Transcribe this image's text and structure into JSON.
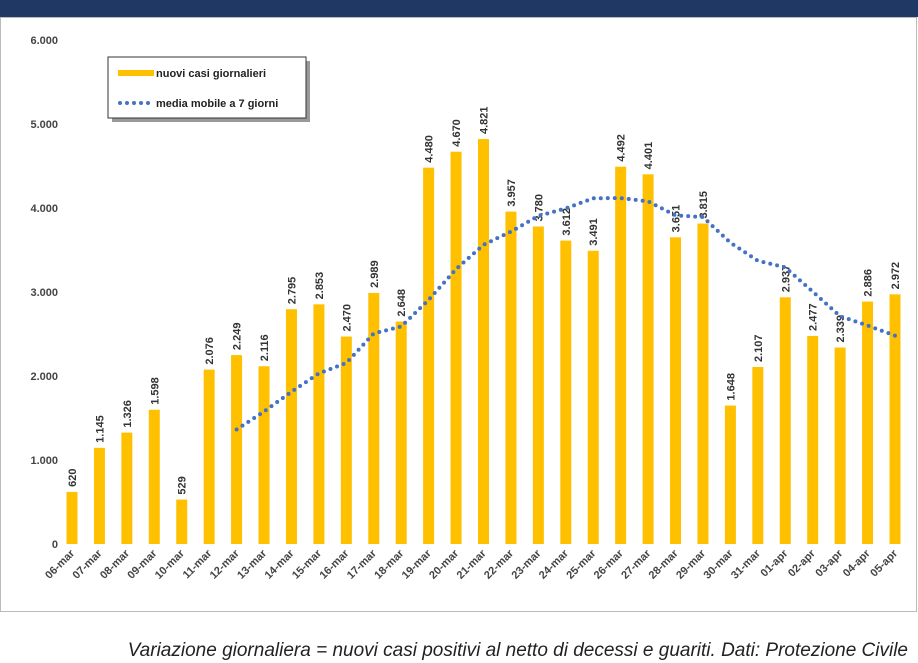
{
  "chart_data": {
    "type": "bar",
    "categories": [
      "06-mar",
      "07-mar",
      "08-mar",
      "09-mar",
      "10-mar",
      "11-mar",
      "12-mar",
      "13-mar",
      "14-mar",
      "15-mar",
      "16-mar",
      "17-mar",
      "18-mar",
      "19-mar",
      "20-mar",
      "21-mar",
      "22-mar",
      "23-mar",
      "24-mar",
      "25-mar",
      "26-mar",
      "27-mar",
      "28-mar",
      "29-mar",
      "30-mar",
      "31-mar",
      "01-apr",
      "02-apr",
      "03-apr",
      "04-apr",
      "05-apr"
    ],
    "series": [
      {
        "name": "nuovi casi giornalieri",
        "color": "#ffc000",
        "type": "bar",
        "values": [
          620,
          1145,
          1326,
          1598,
          529,
          2076,
          2249,
          2116,
          2795,
          2853,
          2470,
          2989,
          2648,
          4480,
          4670,
          4821,
          3957,
          3780,
          3612,
          3491,
          4492,
          4401,
          3651,
          3815,
          1648,
          2107,
          2937,
          2477,
          2339,
          2886,
          2972
        ],
        "value_labels": [
          "620",
          "1.145",
          "1.326",
          "1.598",
          "529",
          "2.076",
          "2.249",
          "2.116",
          "2.795",
          "2.853",
          "2.470",
          "2.989",
          "2.648",
          "4.480",
          "4.670",
          "4.821",
          "3.957",
          "3.780",
          "3.612",
          "3.491",
          "4.492",
          "4.401",
          "3.651",
          "3.815",
          "1.648",
          "2.107",
          "2.937",
          "2.477",
          "2.339",
          "2.886",
          "2.972"
        ]
      },
      {
        "name": "media mobile a 7 giorni",
        "color": "#4472c4",
        "type": "line",
        "values": [
          null,
          null,
          null,
          null,
          null,
          null,
          1363,
          1577,
          1813,
          2031,
          2155,
          2507,
          2589,
          2907,
          3272,
          3562,
          3719,
          3906,
          3995,
          4116,
          4118,
          4079,
          3912,
          3892,
          3587,
          3372,
          3293,
          3005,
          2711,
          2601,
          2481
        ]
      }
    ],
    "ylim": [
      0,
      6000
    ],
    "yticks": [
      0,
      {
        "value": 1000,
        "label": "1.000"
      },
      {
        "value": 2000,
        "label": "2.000"
      },
      {
        "value": 3000,
        "label": "3.000"
      },
      {
        "value": 4000,
        "label": "4.000"
      },
      {
        "value": 5000,
        "label": "5.000"
      },
      {
        "value": 6000,
        "label": "6.000"
      }
    ],
    "legend": "top-left",
    "note": "Variazione giornaliera = nuovi casi positivi al netto di decessi e guariti. Dati: Protezione Civile"
  }
}
